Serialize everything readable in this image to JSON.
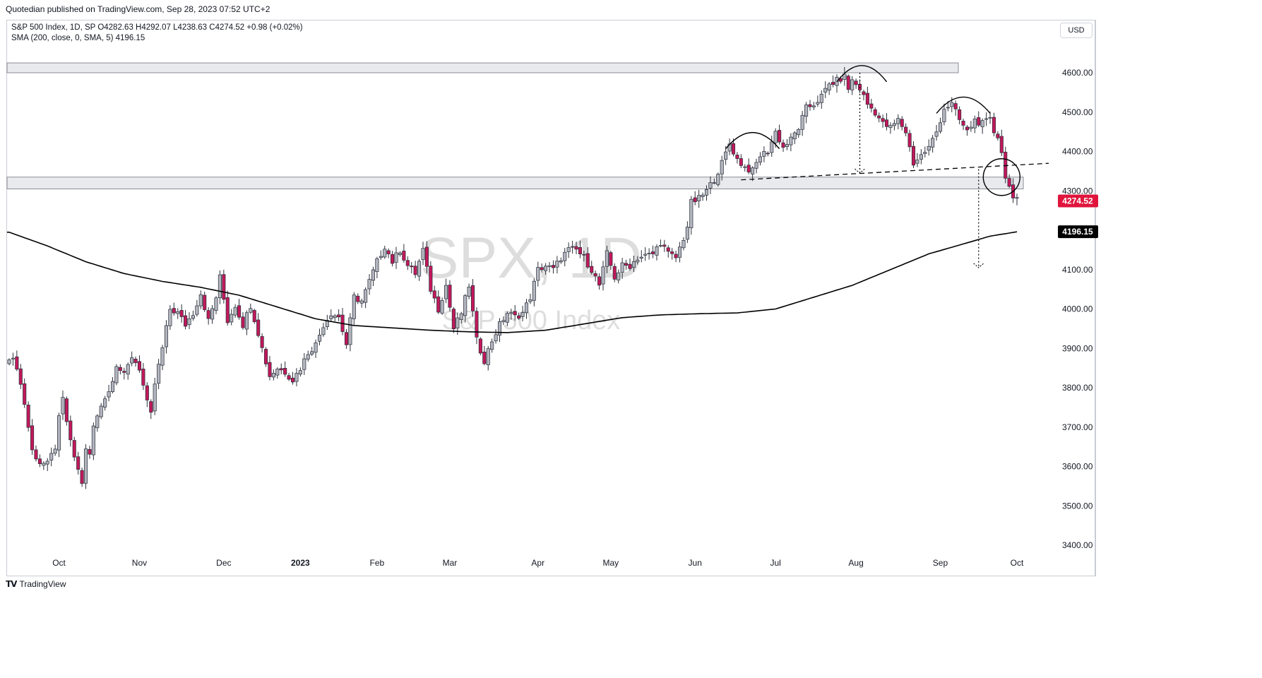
{
  "publisher_line": "Quotedian published on TradingView.com, Sep 28, 2023 07:52 UTC+2",
  "legend": {
    "line1": "S&P 500 Index, 1D, SP  O4282.63  H4292.07  L4238.63  C4274.52  +0.98 (+0.02%)",
    "line2": "SMA (200, close, 0, SMA, 5)  4196.15"
  },
  "currency": "USD",
  "footer_brand": "TradingView",
  "watermark": {
    "symbol": "SPX, 1D",
    "name": "S&P 500 Index"
  },
  "colors": {
    "up": "#b2b5be",
    "down": "#c2185b",
    "price_label": "#e0143c",
    "sma_label": "#000000"
  },
  "chart_data": {
    "type": "candlestick",
    "ylim": [
      3350,
      4670
    ],
    "y_ticks": [
      3400,
      3500,
      3600,
      3700,
      3800,
      3900,
      4000,
      4100,
      4200,
      4300,
      4400,
      4500,
      4600
    ],
    "y_tick_labels": [
      "3400.00",
      "3500.00",
      "3600.00",
      "3700.00",
      "3800.00",
      "3900.00",
      "4000.00",
      "4100.00",
      "4200.00",
      "4300.00",
      "4400.00",
      "4500.00",
      "4600.00"
    ],
    "x_labels": [
      {
        "label": "Oct",
        "t": 13
      },
      {
        "label": "Nov",
        "t": 34
      },
      {
        "label": "Dec",
        "t": 56
      },
      {
        "label": "2023",
        "t": 76,
        "bold": true
      },
      {
        "label": "Feb",
        "t": 96
      },
      {
        "label": "Mar",
        "t": 115
      },
      {
        "label": "Apr",
        "t": 138
      },
      {
        "label": "May",
        "t": 157
      },
      {
        "label": "Jun",
        "t": 179
      },
      {
        "label": "Jul",
        "t": 200
      },
      {
        "label": "Aug",
        "t": 221
      },
      {
        "label": "Sep",
        "t": 243
      },
      {
        "label": "Oct",
        "t": 263
      }
    ],
    "t_range": [
      0,
      263
    ],
    "last_price": "4274.52",
    "sma_value": "4196.15",
    "close_anchors": [
      [
        0,
        3880
      ],
      [
        2,
        3855
      ],
      [
        4,
        3760
      ],
      [
        6,
        3640
      ],
      [
        8,
        3610
      ],
      [
        10,
        3605
      ],
      [
        12,
        3650
      ],
      [
        13,
        3720
      ],
      [
        14,
        3770
      ],
      [
        16,
        3660
      ],
      [
        18,
        3590
      ],
      [
        19,
        3560
      ],
      [
        20,
        3640
      ],
      [
        21,
        3630
      ],
      [
        22,
        3700
      ],
      [
        24,
        3760
      ],
      [
        26,
        3790
      ],
      [
        28,
        3860
      ],
      [
        30,
        3830
      ],
      [
        32,
        3880
      ],
      [
        34,
        3850
      ],
      [
        36,
        3760
      ],
      [
        37,
        3730
      ],
      [
        38,
        3810
      ],
      [
        40,
        3900
      ],
      [
        42,
        4000
      ],
      [
        44,
        3990
      ],
      [
        46,
        3960
      ],
      [
        48,
        3990
      ],
      [
        50,
        4040
      ],
      [
        52,
        3970
      ],
      [
        54,
        4030
      ],
      [
        55,
        4080
      ],
      [
        57,
        3970
      ],
      [
        59,
        4010
      ],
      [
        61,
        3960
      ],
      [
        63,
        4010
      ],
      [
        65,
        3940
      ],
      [
        66,
        3900
      ],
      [
        68,
        3830
      ],
      [
        70,
        3850
      ],
      [
        72,
        3840
      ],
      [
        74,
        3820
      ],
      [
        76,
        3850
      ],
      [
        78,
        3890
      ],
      [
        80,
        3910
      ],
      [
        82,
        3960
      ],
      [
        84,
        3990
      ],
      [
        86,
        3980
      ],
      [
        88,
        3910
      ],
      [
        90,
        4030
      ],
      [
        92,
        4020
      ],
      [
        94,
        4070
      ],
      [
        96,
        4120
      ],
      [
        98,
        4160
      ],
      [
        100,
        4120
      ],
      [
        102,
        4150
      ],
      [
        104,
        4110
      ],
      [
        106,
        4090
      ],
      [
        108,
        4150
      ],
      [
        110,
        4050
      ],
      [
        112,
        4000
      ],
      [
        114,
        4060
      ],
      [
        116,
        3950
      ],
      [
        118,
        3990
      ],
      [
        120,
        4060
      ],
      [
        122,
        3920
      ],
      [
        124,
        3870
      ],
      [
        126,
        3920
      ],
      [
        128,
        3960
      ],
      [
        130,
        3990
      ],
      [
        132,
        3980
      ],
      [
        134,
        3990
      ],
      [
        136,
        4030
      ],
      [
        138,
        4100
      ],
      [
        140,
        4110
      ],
      [
        142,
        4100
      ],
      [
        144,
        4130
      ],
      [
        146,
        4150
      ],
      [
        148,
        4150
      ],
      [
        150,
        4130
      ],
      [
        152,
        4100
      ],
      [
        154,
        4060
      ],
      [
        156,
        4140
      ],
      [
        158,
        4080
      ],
      [
        160,
        4110
      ],
      [
        162,
        4110
      ],
      [
        164,
        4130
      ],
      [
        166,
        4135
      ],
      [
        168,
        4140
      ],
      [
        170,
        4170
      ],
      [
        172,
        4140
      ],
      [
        174,
        4130
      ],
      [
        176,
        4180
      ],
      [
        177,
        4210
      ],
      [
        178,
        4270
      ],
      [
        180,
        4280
      ],
      [
        182,
        4300
      ],
      [
        184,
        4330
      ],
      [
        186,
        4370
      ],
      [
        188,
        4420
      ],
      [
        190,
        4380
      ],
      [
        192,
        4360
      ],
      [
        194,
        4350
      ],
      [
        196,
        4390
      ],
      [
        198,
        4400
      ],
      [
        200,
        4450
      ],
      [
        202,
        4410
      ],
      [
        204,
        4430
      ],
      [
        206,
        4460
      ],
      [
        208,
        4510
      ],
      [
        210,
        4520
      ],
      [
        212,
        4540
      ],
      [
        214,
        4570
      ],
      [
        216,
        4580
      ],
      [
        218,
        4590
      ],
      [
        219,
        4560
      ],
      [
        220,
        4580
      ],
      [
        222,
        4560
      ],
      [
        224,
        4520
      ],
      [
        226,
        4500
      ],
      [
        228,
        4470
      ],
      [
        230,
        4460
      ],
      [
        232,
        4480
      ],
      [
        234,
        4450
      ],
      [
        236,
        4370
      ],
      [
        238,
        4390
      ],
      [
        240,
        4410
      ],
      [
        242,
        4450
      ],
      [
        244,
        4510
      ],
      [
        246,
        4520
      ],
      [
        248,
        4480
      ],
      [
        250,
        4450
      ],
      [
        252,
        4480
      ],
      [
        254,
        4470
      ],
      [
        256,
        4480
      ],
      [
        257,
        4450
      ],
      [
        258,
        4440
      ],
      [
        259,
        4400
      ],
      [
        260,
        4330
      ],
      [
        261,
        4320
      ],
      [
        262,
        4280
      ],
      [
        263,
        4274.52
      ]
    ],
    "sma_anchors": [
      [
        0,
        4195
      ],
      [
        10,
        4160
      ],
      [
        20,
        4120
      ],
      [
        30,
        4090
      ],
      [
        40,
        4070
      ],
      [
        50,
        4055
      ],
      [
        60,
        4035
      ],
      [
        70,
        4005
      ],
      [
        80,
        3975
      ],
      [
        90,
        3958
      ],
      [
        100,
        3952
      ],
      [
        110,
        3946
      ],
      [
        120,
        3942
      ],
      [
        130,
        3940
      ],
      [
        140,
        3946
      ],
      [
        150,
        3962
      ],
      [
        160,
        3978
      ],
      [
        170,
        3985
      ],
      [
        180,
        3988
      ],
      [
        190,
        3990
      ],
      [
        200,
        4000
      ],
      [
        210,
        4030
      ],
      [
        220,
        4060
      ],
      [
        230,
        4100
      ],
      [
        240,
        4140
      ],
      [
        250,
        4168
      ],
      [
        256,
        4185
      ],
      [
        263,
        4196
      ]
    ],
    "resistance_zone": [
      4600,
      4625
    ],
    "support_zone": [
      4305,
      4335
    ],
    "neckline": [
      [
        191,
        4328
      ],
      [
        275,
        4370
      ]
    ],
    "arcs": [
      {
        "t0": 187,
        "t1": 201,
        "peak": 4450
      },
      {
        "t0": 216,
        "t1": 229,
        "peak": 4620
      },
      {
        "t0": 242,
        "t1": 256,
        "peak": 4540
      }
    ],
    "circle": {
      "t": 259,
      "price": 4335
    },
    "projection_lines": [
      {
        "t": 222,
        "from": 4600,
        "to": 4345
      },
      {
        "t": 253,
        "from": 4355,
        "to": 4105
      }
    ]
  }
}
